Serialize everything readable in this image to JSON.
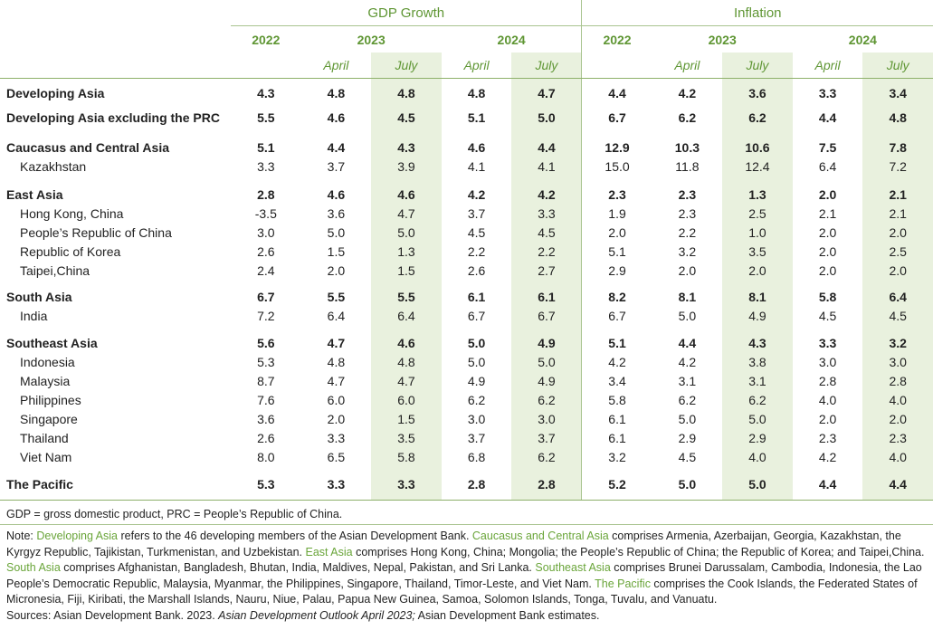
{
  "header": {
    "groups": [
      "GDP Growth",
      "Inflation"
    ],
    "years": [
      "2022",
      "2023",
      "2024",
      "2022",
      "2023",
      "2024"
    ],
    "months": [
      "April",
      "July",
      "April",
      "July",
      "April",
      "July",
      "April",
      "July"
    ]
  },
  "table": {
    "groups": [
      {
        "name": "Developing Asia",
        "values": [
          "4.3",
          "4.8",
          "4.8",
          "4.8",
          "4.7",
          "4.4",
          "4.2",
          "3.6",
          "3.3",
          "3.4"
        ],
        "members": []
      },
      {
        "name": "Developing Asia excluding the PRC",
        "values": [
          "5.5",
          "4.6",
          "4.5",
          "5.1",
          "5.0",
          "6.7",
          "6.2",
          "6.2",
          "4.4",
          "4.8"
        ],
        "members": []
      },
      {
        "name": "Caucasus and Central Asia",
        "values": [
          "5.1",
          "4.4",
          "4.3",
          "4.6",
          "4.4",
          "12.9",
          "10.3",
          "10.6",
          "7.5",
          "7.8"
        ],
        "members": [
          {
            "name": "Kazakhstan",
            "values": [
              "3.3",
              "3.7",
              "3.9",
              "4.1",
              "4.1",
              "15.0",
              "11.8",
              "12.4",
              "6.4",
              "7.2"
            ]
          }
        ]
      },
      {
        "name": "East Asia",
        "values": [
          "2.8",
          "4.6",
          "4.6",
          "4.2",
          "4.2",
          "2.3",
          "2.3",
          "1.3",
          "2.0",
          "2.1"
        ],
        "members": [
          {
            "name": "Hong Kong, China",
            "values": [
              "-3.5",
              "3.6",
              "4.7",
              "3.7",
              "3.3",
              "1.9",
              "2.3",
              "2.5",
              "2.1",
              "2.1"
            ]
          },
          {
            "name": "People’s Republic of China",
            "values": [
              "3.0",
              "5.0",
              "5.0",
              "4.5",
              "4.5",
              "2.0",
              "2.2",
              "1.0",
              "2.0",
              "2.0"
            ]
          },
          {
            "name": "Republic of Korea",
            "values": [
              "2.6",
              "1.5",
              "1.3",
              "2.2",
              "2.2",
              "5.1",
              "3.2",
              "3.5",
              "2.0",
              "2.5"
            ]
          },
          {
            "name": "Taipei,China",
            "values": [
              "2.4",
              "2.0",
              "1.5",
              "2.6",
              "2.7",
              "2.9",
              "2.0",
              "2.0",
              "2.0",
              "2.0"
            ]
          }
        ]
      },
      {
        "name": "South Asia",
        "values": [
          "6.7",
          "5.5",
          "5.5",
          "6.1",
          "6.1",
          "8.2",
          "8.1",
          "8.1",
          "5.8",
          "6.4"
        ],
        "members": [
          {
            "name": "India",
            "values": [
              "7.2",
              "6.4",
              "6.4",
              "6.7",
              "6.7",
              "6.7",
              "5.0",
              "4.9",
              "4.5",
              "4.5"
            ]
          }
        ]
      },
      {
        "name": "Southeast Asia",
        "values": [
          "5.6",
          "4.7",
          "4.6",
          "5.0",
          "4.9",
          "5.1",
          "4.4",
          "4.3",
          "3.3",
          "3.2"
        ],
        "members": [
          {
            "name": "Indonesia",
            "values": [
              "5.3",
              "4.8",
              "4.8",
              "5.0",
              "5.0",
              "4.2",
              "4.2",
              "3.8",
              "3.0",
              "3.0"
            ]
          },
          {
            "name": "Malaysia",
            "values": [
              "8.7",
              "4.7",
              "4.7",
              "4.9",
              "4.9",
              "3.4",
              "3.1",
              "3.1",
              "2.8",
              "2.8"
            ]
          },
          {
            "name": "Philippines",
            "values": [
              "7.6",
              "6.0",
              "6.0",
              "6.2",
              "6.2",
              "5.8",
              "6.2",
              "6.2",
              "4.0",
              "4.0"
            ]
          },
          {
            "name": "Singapore",
            "values": [
              "3.6",
              "2.0",
              "1.5",
              "3.0",
              "3.0",
              "6.1",
              "5.0",
              "5.0",
              "2.0",
              "2.0"
            ]
          },
          {
            "name": "Thailand",
            "values": [
              "2.6",
              "3.3",
              "3.5",
              "3.7",
              "3.7",
              "6.1",
              "2.9",
              "2.9",
              "2.3",
              "2.3"
            ]
          },
          {
            "name": "Viet Nam",
            "values": [
              "8.0",
              "6.5",
              "5.8",
              "6.8",
              "6.2",
              "3.2",
              "4.5",
              "4.0",
              "4.2",
              "4.0"
            ]
          }
        ]
      },
      {
        "name": "The Pacific",
        "values": [
          "5.3",
          "3.3",
          "3.3",
          "2.8",
          "2.8",
          "5.2",
          "5.0",
          "5.0",
          "4.4",
          "4.4"
        ],
        "members": []
      }
    ]
  },
  "footnotes": {
    "abbreviations": "GDP = gross domestic product, PRC = People’s Republic of China.",
    "note": {
      "label": "Note: ",
      "parts": [
        {
          "term": "Developing Asia",
          "text": " refers to the 46 developing members of the Asian Development Bank. "
        },
        {
          "term": "Caucasus and Central Asia",
          "text": " comprises Armenia, Azerbaijan, Georgia, Kazakhstan, the Kyrgyz Republic, Tajikistan, Turkmenistan, and Uzbekistan. "
        },
        {
          "term": "East Asia",
          "text": " comprises Hong Kong, China; Mongolia; the People’s Republic of China; the Republic of Korea; and Taipei,China. "
        },
        {
          "term": "South Asia",
          "text": " comprises Afghanistan, Bangladesh, Bhutan, India, Maldives, Nepal, Pakistan, and Sri Lanka. "
        },
        {
          "term": "Southeast Asia",
          "text": " comprises Brunei Darussalam, Cambodia, Indonesia, the Lao People’s Democratic Republic, Malaysia, Myanmar, the Philippines, Singapore, Thailand, Timor-Leste, and Viet Nam. "
        },
        {
          "term": "The Pacific",
          "text": " comprises the Cook Islands, the Federated States of Micronesia, Fiji, Kiribati, the Marshall Islands, Nauru, Niue, Palau, Papua New Guinea, Samoa, Solomon Islands, Tonga, Tuvalu, and Vanuatu."
        }
      ]
    },
    "sources": {
      "prefix": "Sources: Asian Development Bank. 2023. ",
      "title": "Asian Development Outlook April 2023;",
      "suffix": " Asian Development Bank estimates."
    }
  }
}
